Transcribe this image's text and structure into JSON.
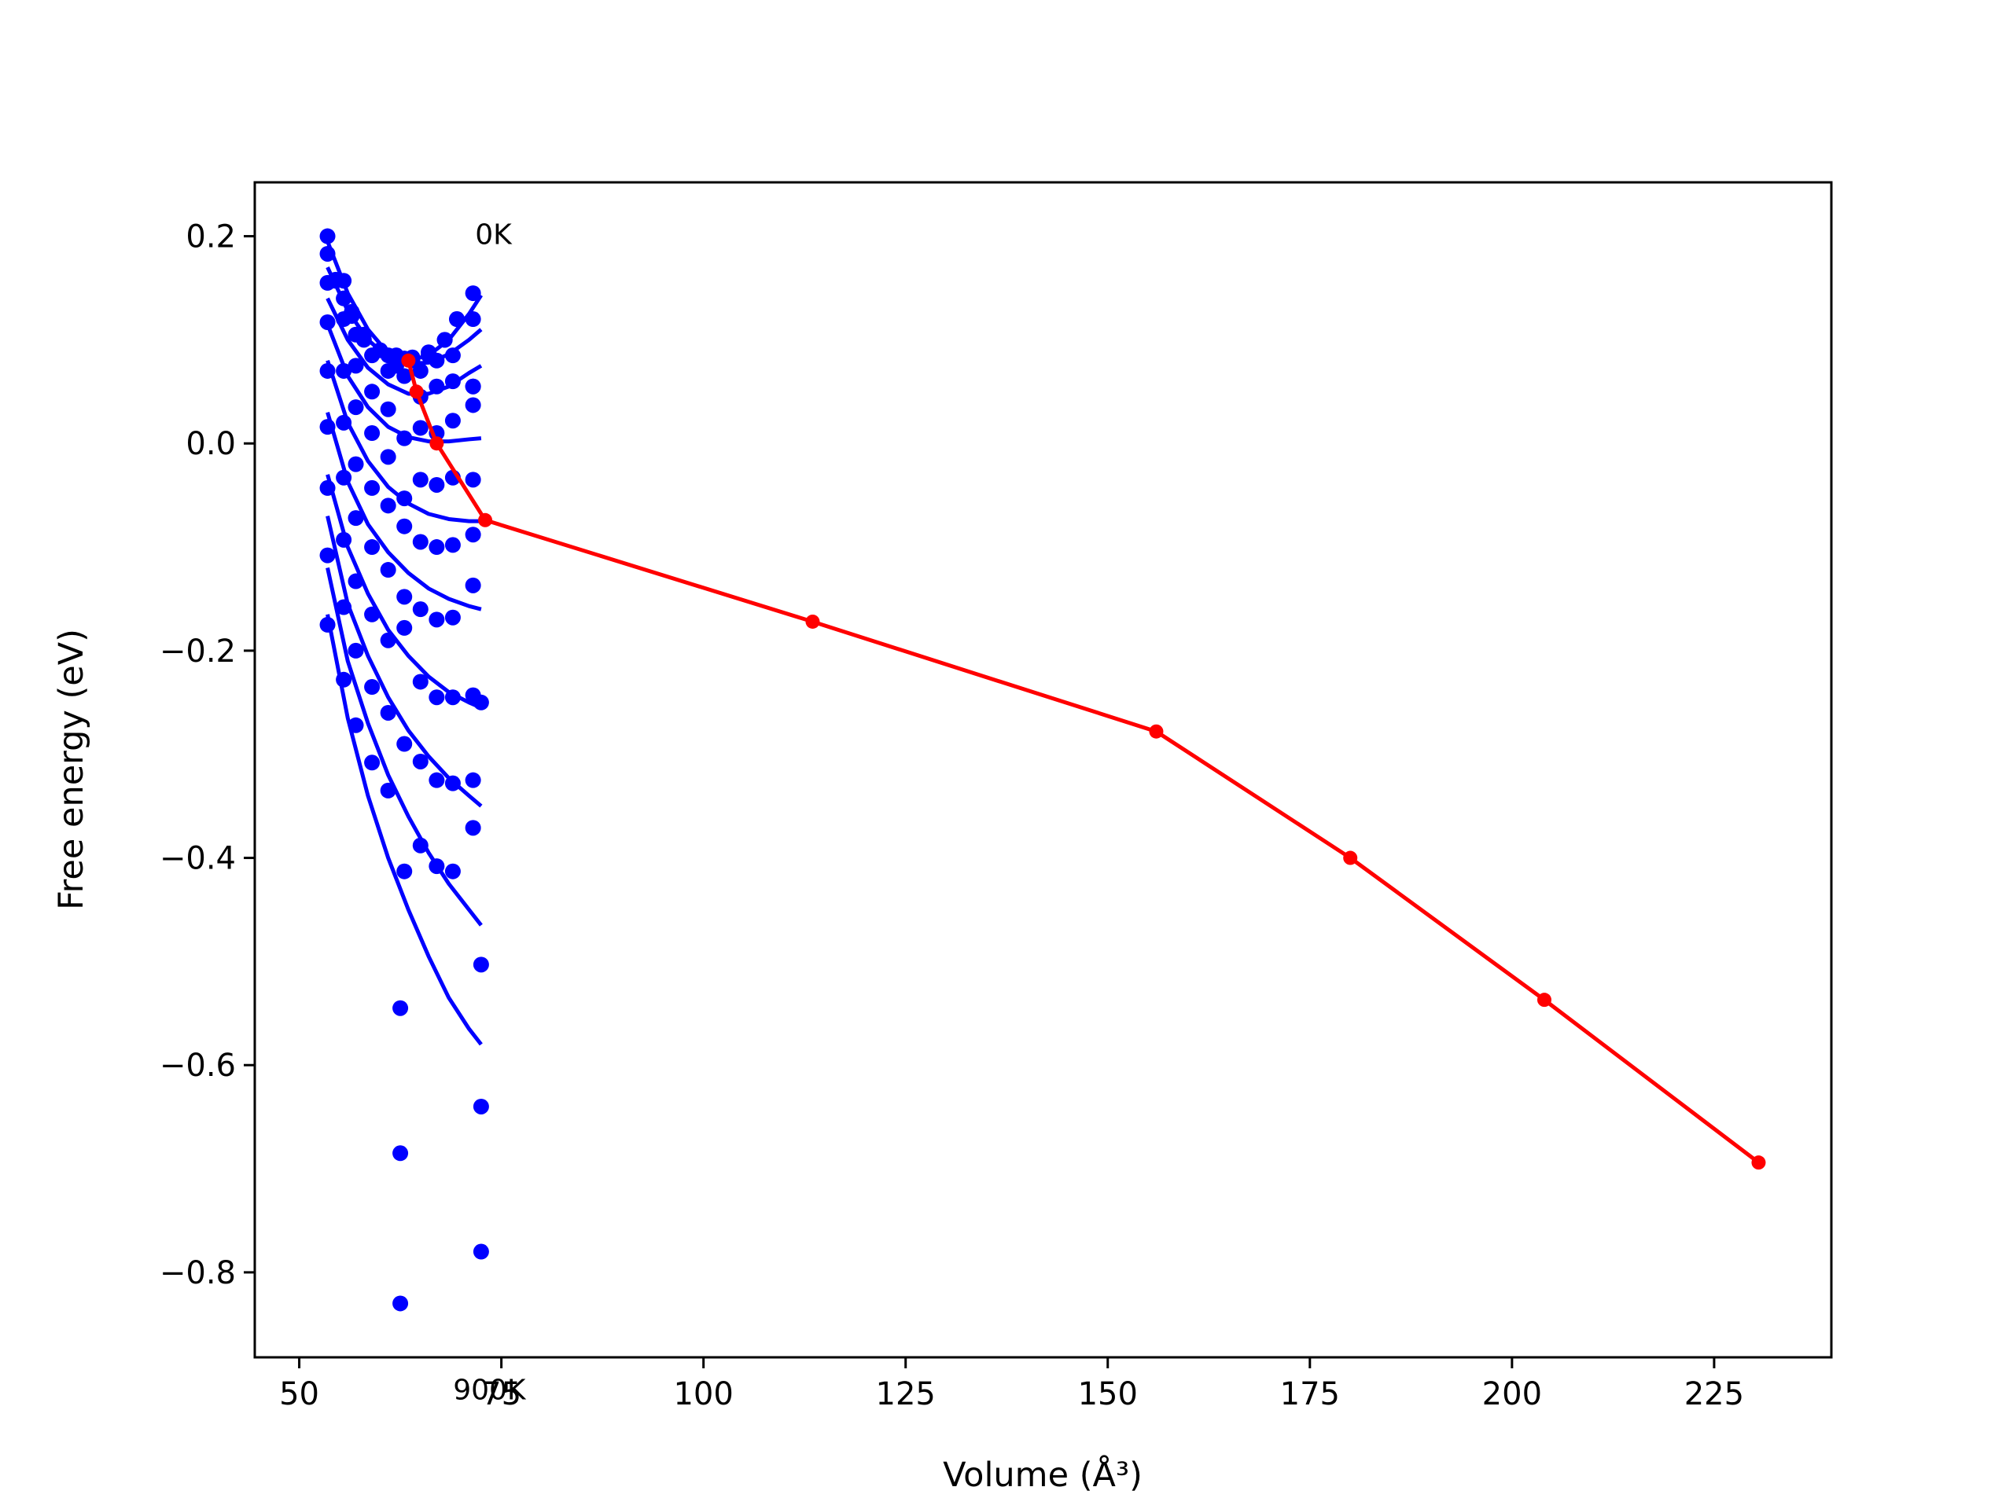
{
  "chart_data": {
    "type": "scatter",
    "title": "",
    "xlabel": "Volume (Å³)",
    "ylabel": "Free energy (eV)",
    "xlim": [
      44.5,
      239.5
    ],
    "ylim": [
      -0.882,
      0.252
    ],
    "xticks": [
      50,
      75,
      100,
      125,
      150,
      175,
      200,
      225
    ],
    "xtick_labels": [
      "50",
      "75",
      "100",
      "125",
      "150",
      "175",
      "200",
      "225"
    ],
    "yticks": [
      0.2,
      0.0,
      -0.2,
      -0.4,
      -0.6,
      -0.8
    ],
    "ytick_labels": [
      "0.2",
      "0.0",
      "−0.2",
      "−0.4",
      "−0.6",
      "−0.8"
    ],
    "grid": false,
    "legend": "none",
    "annotations": [
      {
        "text": "0K",
        "x": 70.0,
        "y": 0.2
      },
      {
        "text": "900K",
        "x": 70.0,
        "y": -0.915
      }
    ],
    "colors": {
      "fit": "#0000ff",
      "points": "#0000ff",
      "min_path": "#ff0000"
    },
    "series": [
      {
        "kind": "points",
        "x": [
          53.5,
          53.5,
          54.5,
          55.5,
          56.5,
          58.0,
          60.0,
          62.0,
          64.0,
          66.0,
          68.0,
          69.5,
          71.5
        ],
        "y": [
          0.2,
          0.183,
          0.158,
          0.14,
          0.123,
          0.105,
          0.09,
          0.085,
          0.083,
          0.088,
          0.1,
          0.12,
          0.145
        ]
      },
      {
        "kind": "points",
        "x": [
          53.5,
          54.5,
          55.5,
          56.5,
          58.0,
          60.0,
          62.0,
          64.0,
          66.0,
          68.0,
          69.5,
          71.5
        ],
        "y": [
          0.155,
          0.157,
          0.157,
          0.127,
          0.1,
          0.09,
          0.075,
          0.08,
          0.085,
          0.1,
          0.12,
          0.12
        ]
      },
      {
        "kind": "points",
        "x": [
          53.5,
          55.5,
          57.0,
          59.0,
          61.0,
          63.0,
          65.0,
          67.0,
          69.0,
          71.5
        ],
        "y": [
          0.117,
          0.12,
          0.105,
          0.085,
          0.085,
          0.082,
          0.07,
          0.08,
          0.085,
          0.055
        ]
      },
      {
        "kind": "points",
        "x": [
          53.5,
          55.5,
          57.0,
          59.0,
          61.0,
          63.0,
          65.0,
          67.0,
          69.0,
          71.5
        ],
        "y": [
          0.07,
          0.07,
          0.075,
          0.05,
          0.07,
          0.065,
          0.045,
          0.055,
          0.06,
          0.055
        ]
      },
      {
        "kind": "points",
        "x": [
          53.5,
          55.5,
          57.0,
          59.0,
          61.0,
          63.0,
          65.0,
          67.0,
          69.0,
          71.5
        ],
        "y": [
          0.016,
          0.02,
          0.035,
          0.01,
          0.033,
          0.005,
          0.015,
          0.01,
          0.022,
          0.037
        ]
      },
      {
        "kind": "points",
        "x": [
          53.5,
          55.5,
          57.0,
          59.0,
          61.0,
          63.0,
          65.0,
          67.0,
          69.0,
          71.5
        ],
        "y": [
          -0.043,
          -0.033,
          -0.02,
          -0.043,
          -0.013,
          -0.053,
          -0.035,
          -0.04,
          -0.033,
          -0.035
        ]
      },
      {
        "kind": "points",
        "x": [
          53.5,
          55.5,
          57.0,
          59.0,
          61.0,
          63.0,
          65.0,
          67.0,
          69.0,
          71.5
        ],
        "y": [
          -0.108,
          -0.093,
          -0.072,
          -0.1,
          -0.06,
          -0.08,
          -0.095,
          -0.1,
          -0.098,
          -0.088
        ]
      },
      {
        "kind": "points",
        "x": [
          53.5,
          55.5,
          57.0,
          59.0,
          61.0,
          63.0,
          65.0,
          67.0,
          69.0,
          71.5
        ],
        "y": [
          -0.175,
          -0.158,
          -0.133,
          -0.165,
          -0.122,
          -0.148,
          -0.16,
          -0.17,
          -0.168,
          -0.137
        ]
      },
      {
        "kind": "points",
        "x": [
          55.5,
          57.0,
          59.0,
          61.0,
          63.0,
          65.0,
          67.0,
          69.0,
          71.5
        ],
        "y": [
          -0.228,
          -0.2,
          -0.235,
          -0.19,
          -0.178,
          -0.23,
          -0.245,
          -0.245,
          -0.243
        ]
      },
      {
        "kind": "points",
        "x": [
          57.0,
          59.0,
          61.0,
          63.0,
          65.0,
          67.0,
          69.0,
          71.5
        ],
        "y": [
          -0.272,
          -0.308,
          -0.26,
          -0.29,
          -0.307,
          -0.325,
          -0.328,
          -0.325
        ]
      },
      {
        "kind": "points",
        "x": [
          61.0,
          63.0,
          65.0,
          67.0,
          69.0,
          71.5
        ],
        "y": [
          -0.335,
          -0.413,
          -0.388,
          -0.408,
          -0.413,
          -0.371
        ]
      },
      {
        "kind": "points",
        "x": [
          62.5,
          62.5,
          62.5,
          72.5,
          72.5,
          72.5,
          72.5
        ],
        "y": [
          -0.545,
          -0.685,
          -0.83,
          -0.503,
          -0.64,
          -0.78,
          -0.25
        ]
      },
      {
        "kind": "fit",
        "x": [
          53.5,
          56.0,
          58.5,
          61.0,
          63.5,
          66.0,
          68.5,
          71.0,
          72.5
        ],
        "y": [
          0.195,
          0.145,
          0.11,
          0.087,
          0.08,
          0.085,
          0.1,
          0.125,
          0.143
        ]
      },
      {
        "kind": "fit",
        "x": [
          53.5,
          56.0,
          58.5,
          61.0,
          63.5,
          66.0,
          68.5,
          71.0,
          72.5
        ],
        "y": [
          0.17,
          0.128,
          0.1,
          0.083,
          0.077,
          0.078,
          0.086,
          0.1,
          0.11
        ]
      },
      {
        "kind": "fit",
        "x": [
          53.5,
          56.0,
          58.5,
          61.0,
          63.5,
          66.0,
          68.5,
          71.0,
          72.5
        ],
        "y": [
          0.14,
          0.1,
          0.073,
          0.057,
          0.048,
          0.048,
          0.055,
          0.068,
          0.075
        ]
      },
      {
        "kind": "fit",
        "x": [
          53.5,
          56.0,
          58.5,
          61.0,
          63.5,
          66.0,
          68.5,
          71.0,
          72.5
        ],
        "y": [
          0.115,
          0.065,
          0.035,
          0.016,
          0.006,
          0.002,
          0.002,
          0.004,
          0.005
        ]
      },
      {
        "kind": "fit",
        "x": [
          53.5,
          56.0,
          58.5,
          61.0,
          63.5,
          66.0,
          68.5,
          71.0,
          72.5
        ],
        "y": [
          0.08,
          0.02,
          -0.017,
          -0.042,
          -0.058,
          -0.068,
          -0.073,
          -0.075,
          -0.075
        ]
      },
      {
        "kind": "fit",
        "x": [
          53.5,
          56.0,
          58.5,
          61.0,
          63.5,
          66.0,
          68.5,
          71.0,
          72.5
        ],
        "y": [
          0.03,
          -0.037,
          -0.078,
          -0.105,
          -0.125,
          -0.14,
          -0.15,
          -0.157,
          -0.16
        ]
      },
      {
        "kind": "fit",
        "x": [
          53.5,
          56.0,
          58.5,
          61.0,
          63.5,
          66.0,
          68.5,
          71.0,
          72.5
        ],
        "y": [
          -0.03,
          -0.1,
          -0.145,
          -0.18,
          -0.205,
          -0.225,
          -0.24,
          -0.25,
          -0.255
        ]
      },
      {
        "kind": "fit",
        "x": [
          53.5,
          56.0,
          58.5,
          61.0,
          63.5,
          66.0,
          68.5,
          71.0,
          72.5
        ],
        "y": [
          -0.07,
          -0.155,
          -0.205,
          -0.245,
          -0.277,
          -0.302,
          -0.323,
          -0.34,
          -0.35
        ]
      },
      {
        "kind": "fit",
        "x": [
          53.5,
          56.0,
          58.5,
          61.0,
          63.5,
          66.0,
          68.5,
          71.0,
          72.5
        ],
        "y": [
          -0.12,
          -0.21,
          -0.27,
          -0.32,
          -0.36,
          -0.395,
          -0.425,
          -0.45,
          -0.465
        ]
      },
      {
        "kind": "fit",
        "x": [
          53.5,
          56.0,
          58.5,
          61.0,
          63.5,
          66.0,
          68.5,
          71.0,
          72.5
        ],
        "y": [
          -0.165,
          -0.265,
          -0.34,
          -0.4,
          -0.45,
          -0.495,
          -0.535,
          -0.565,
          -0.58
        ]
      },
      {
        "kind": "minimum",
        "x": [
          63.5,
          64.5,
          67.0,
          73.0,
          113.5,
          156.0,
          180.0,
          204.0,
          230.5
        ],
        "y": [
          0.08,
          0.05,
          0.0,
          -0.074,
          -0.172,
          -0.278,
          -0.4,
          -0.537,
          -0.694
        ]
      }
    ]
  }
}
